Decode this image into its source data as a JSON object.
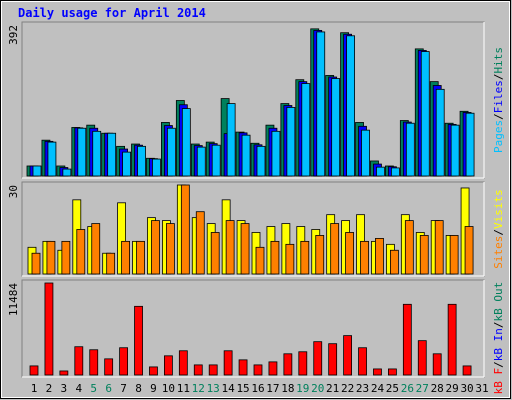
{
  "title": "Daily usage for April 2014",
  "separator": "/",
  "chart_data": [
    {
      "type": "bar",
      "ylim": [
        0,
        392
      ],
      "yticks": [
        392
      ],
      "series": [
        {
          "name": "Hits",
          "color": "#00805c",
          "values": [
            26,
            93,
            26,
            126,
            132,
            111,
            77,
            83,
            46,
            139,
            196,
            83,
            88,
            201,
            114,
            85,
            132,
            188,
            250,
            382,
            261,
            372,
            139,
            39,
            26,
            144,
            330,
            245,
            137,
            168,
            null
          ]
        },
        {
          "name": "Files",
          "color": "#0000ff",
          "values": [
            26,
            90,
            22,
            125,
            124,
            111,
            70,
            80,
            45,
            131,
            185,
            79,
            84,
            110,
            112,
            81,
            124,
            183,
            245,
            378,
            257,
            368,
            129,
            31,
            24,
            140,
            326,
            235,
            134,
            165,
            null
          ]
        },
        {
          "name": "Pages",
          "color": "#00c0ff",
          "values": [
            26,
            88,
            18,
            124,
            116,
            111,
            62,
            77,
            44,
            124,
            175,
            75,
            80,
            188,
            106,
            77,
            116,
            178,
            240,
            374,
            253,
            364,
            119,
            23,
            21,
            137,
            323,
            225,
            132,
            163,
            null
          ]
        }
      ]
    },
    {
      "type": "bar",
      "ylim": [
        0,
        30
      ],
      "yticks": [
        30
      ],
      "series": [
        {
          "name": "Visits",
          "color": "#ffff00",
          "values": [
            9,
            11,
            8,
            25,
            16,
            7,
            24,
            11,
            19,
            18,
            30,
            19,
            17,
            25,
            18,
            14,
            16,
            17,
            16,
            15,
            20,
            18,
            20,
            11,
            10,
            20,
            14,
            18,
            13,
            29,
            null
          ]
        },
        {
          "name": "Sites",
          "color": "#ff8000",
          "values": [
            7,
            11,
            11,
            15,
            17,
            7,
            11,
            11,
            18,
            17,
            30,
            21,
            14,
            18,
            17,
            9,
            11,
            10,
            11,
            13,
            17,
            14,
            11,
            12,
            8,
            18,
            13,
            18,
            13,
            16,
            null
          ]
        }
      ]
    },
    {
      "type": "bar",
      "ylim": [
        0,
        11484
      ],
      "yticks": [
        11484
      ],
      "categories": [
        "1",
        "2",
        "3",
        "4",
        "5",
        "6",
        "7",
        "8",
        "9",
        "10",
        "11",
        "12",
        "13",
        "14",
        "15",
        "16",
        "17",
        "18",
        "19",
        "20",
        "21",
        "22",
        "23",
        "24",
        "25",
        "26",
        "27",
        "28",
        "29",
        "30",
        "31"
      ],
      "weekends": [
        5,
        6,
        12,
        13,
        19,
        20,
        26,
        27
      ],
      "weekend_color": "#00805c",
      "series": [
        {
          "name": "kB F",
          "color": "#ff0000",
          "values": [
            1136,
            11484,
            504,
            3530,
            3151,
            2016,
            3404,
            8572,
            1009,
            2395,
            3025,
            1261,
            1261,
            3025,
            1891,
            1261,
            1639,
            2647,
            2900,
            4160,
            3908,
            4916,
            3404,
            757,
            757,
            8824,
            4286,
            2647,
            8824,
            1134,
            null
          ]
        }
      ],
      "legend_extra": [
        {
          "name": "kB In",
          "color": "#0000ff"
        },
        {
          "name": "kB Out",
          "color": "#00805c"
        }
      ]
    }
  ]
}
